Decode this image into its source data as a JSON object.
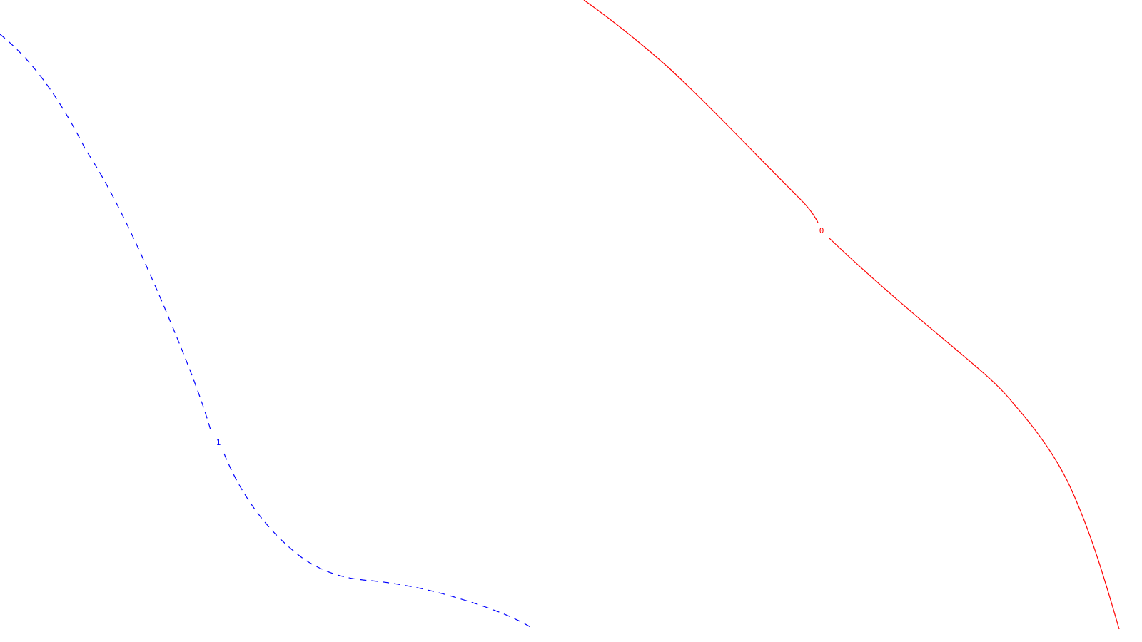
{
  "curves": [
    {
      "label": "0",
      "color": "#ff0000",
      "line_style": "solid"
    },
    {
      "label": "1",
      "color": "#0000ff",
      "line_style": "dashed"
    }
  ]
}
